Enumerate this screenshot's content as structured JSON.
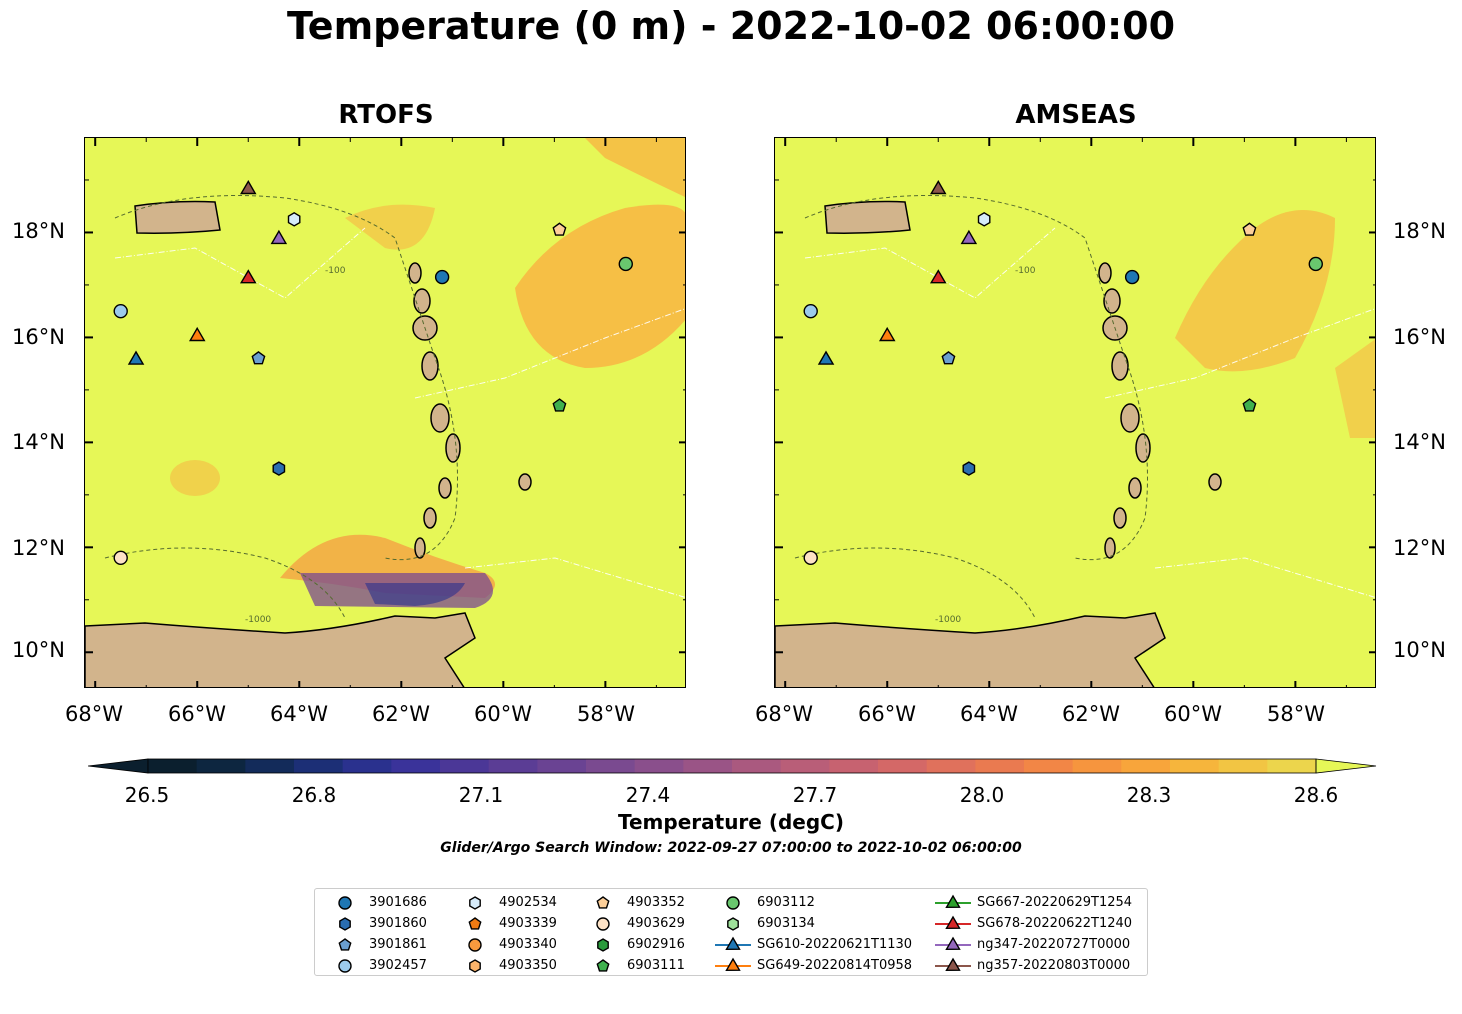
{
  "title": "Temperature (0 m) - 2022-10-02 06:00:00",
  "panels": [
    {
      "title": "RTOFS"
    },
    {
      "title": "AMSEAS"
    }
  ],
  "lat_labels": [
    "18°N",
    "16°N",
    "14°N",
    "12°N",
    "10°N"
  ],
  "lon_labels": [
    "68°W",
    "66°W",
    "64°W",
    "62°W",
    "60°W",
    "58°W"
  ],
  "contour_labels": [
    "-100",
    "-1000"
  ],
  "colorbar": {
    "ticks": [
      "26.5",
      "26.8",
      "27.1",
      "27.4",
      "27.7",
      "28.0",
      "28.3",
      "28.6"
    ],
    "label": "Temperature (degC)",
    "colors": [
      "#0b1f2e",
      "#0d2640",
      "#132b5a",
      "#1c2f76",
      "#2a318e",
      "#3a339a",
      "#4b3797",
      "#5b3d95",
      "#6a4393",
      "#7a4a90",
      "#8a4f8c",
      "#9a5486",
      "#aa597f",
      "#b95e78",
      "#c76270",
      "#d46867",
      "#e0715c",
      "#ea7a50",
      "#f28646",
      "#f6953e",
      "#f8a53b",
      "#f6b53c",
      "#f2c543",
      "#ecd54c"
    ],
    "under_color": "#0b1f2e",
    "over_color": "#e6f757"
  },
  "search_window": "Glider/Argo Search Window: 2022-09-27 07:00:00 to 2022-10-02 06:00:00",
  "colors": {
    "field": "#e6f757",
    "land": "#d2b48c",
    "warm_patch": "#f8b542",
    "orange_patch": "#f69540"
  },
  "legend": [
    {
      "label": "3901686",
      "marker": "circle",
      "color": "#1f77b4"
    },
    {
      "label": "3901860",
      "marker": "hexagon",
      "color": "#2a6db0"
    },
    {
      "label": "3901861",
      "marker": "pentagon",
      "color": "#6a9fd0"
    },
    {
      "label": "3902457",
      "marker": "circle",
      "color": "#9ccbec"
    },
    {
      "label": "4902534",
      "marker": "hexagon",
      "color": "#d6ebfa"
    },
    {
      "label": "4903339",
      "marker": "pentagon",
      "color": "#f07b13"
    },
    {
      "label": "4903340",
      "marker": "circle",
      "color": "#f79a3e"
    },
    {
      "label": "4903350",
      "marker": "hexagon",
      "color": "#fbb46b"
    },
    {
      "label": "4903352",
      "marker": "pentagon",
      "color": "#fdcf99"
    },
    {
      "label": "4903629",
      "marker": "circle",
      "color": "#fde2c6"
    },
    {
      "label": "6902916",
      "marker": "hexagon",
      "color": "#2a9a3c"
    },
    {
      "label": "6903111",
      "marker": "pentagon",
      "color": "#3fb14e"
    },
    {
      "label": "6903112",
      "marker": "circle",
      "color": "#69c76e"
    },
    {
      "label": "6903134",
      "marker": "hexagon",
      "color": "#9ee09a"
    },
    {
      "label": "SG610-20220621T1130",
      "marker": "triangle-line",
      "color": "#1f77b4"
    },
    {
      "label": "SG649-20220814T0958",
      "marker": "triangle-line",
      "color": "#ff7f0e"
    },
    {
      "label": "SG667-20220629T1254",
      "marker": "triangle-line",
      "color": "#2ca02c"
    },
    {
      "label": "SG678-20220622T1240",
      "marker": "triangle-line",
      "color": "#d62728"
    },
    {
      "label": "ng347-20220727T0000",
      "marker": "triangle-line",
      "color": "#9467bd"
    },
    {
      "label": "ng357-20220803T0000",
      "marker": "triangle-line",
      "color": "#8c564b"
    }
  ],
  "observations": [
    {
      "id": "3901686",
      "lon": -61.2,
      "lat": 17.15,
      "marker": "circle",
      "color": "#1f77b4"
    },
    {
      "id": "3901860",
      "lon": -64.4,
      "lat": 13.5,
      "marker": "hexagon",
      "color": "#2a6db0"
    },
    {
      "id": "3901861",
      "lon": -64.8,
      "lat": 15.6,
      "marker": "pentagon",
      "color": "#6a9fd0"
    },
    {
      "id": "3902457",
      "lon": -67.5,
      "lat": 16.5,
      "marker": "circle",
      "color": "#9ccbec"
    },
    {
      "id": "4902534",
      "lon": -64.1,
      "lat": 18.25,
      "marker": "hexagon",
      "color": "#d6ebfa"
    },
    {
      "id": "4903352",
      "lon": -58.9,
      "lat": 18.05,
      "marker": "pentagon",
      "color": "#fdcf99"
    },
    {
      "id": "4903629",
      "lon": -67.5,
      "lat": 11.8,
      "marker": "circle",
      "color": "#fde2c6"
    },
    {
      "id": "6903111",
      "lon": -58.9,
      "lat": 14.7,
      "marker": "pentagon",
      "color": "#3fb14e"
    },
    {
      "id": "6903112",
      "lon": -57.6,
      "lat": 17.4,
      "marker": "circle",
      "color": "#69c76e"
    },
    {
      "id": "SG610-20220621T1130",
      "lon": -67.2,
      "lat": 15.6,
      "marker": "triangle",
      "color": "#1f77b4"
    },
    {
      "id": "SG649-20220814T0958",
      "lon": -66.0,
      "lat": 16.05,
      "marker": "triangle",
      "color": "#ff7f0e"
    },
    {
      "id": "SG678-20220622T1240",
      "lon": -65.0,
      "lat": 17.15,
      "marker": "triangle",
      "color": "#d62728"
    },
    {
      "id": "ng347-20220727T0000",
      "lon": -64.4,
      "lat": 17.9,
      "marker": "triangle",
      "color": "#9467bd"
    },
    {
      "id": "ng357-20220803T0000",
      "lon": -65.0,
      "lat": 18.85,
      "marker": "triangle",
      "color": "#8c564b"
    }
  ]
}
